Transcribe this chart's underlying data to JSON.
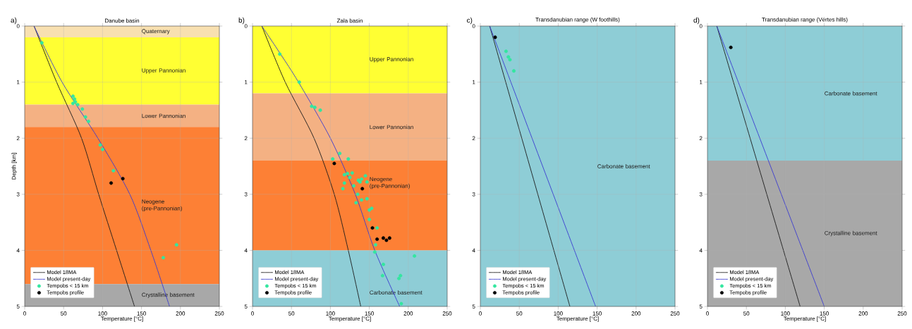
{
  "chart_data": [
    {
      "type": "line",
      "title": "Danube basin",
      "xlabel": "Temperature [°C]",
      "ylabel": "Depth [km]",
      "annotations": [
        "a)"
      ],
      "xlim": [
        0,
        250
      ],
      "ylim": [
        5,
        0
      ],
      "xticks": [
        0,
        50,
        100,
        150,
        200,
        250
      ],
      "yticks": [
        0,
        1,
        2,
        3,
        4,
        5
      ],
      "grid": true,
      "legend": "bottom left",
      "bands": [
        {
          "axis": "y",
          "from": 0,
          "to": 0.2,
          "label": "Quaternary",
          "color": "#f8e0b0"
        },
        {
          "axis": "y",
          "from": 0.2,
          "to": 1.4,
          "label": "Upper Pannonian",
          "color": "#ffff33"
        },
        {
          "axis": "y",
          "from": 1.4,
          "to": 1.8,
          "label": "Lower Pannonian",
          "color": "#f4b183"
        },
        {
          "axis": "y",
          "from": 1.8,
          "to": 4.6,
          "label": "Neogene (pre-Pannonian)",
          "color": "#fd8035"
        },
        {
          "axis": "y",
          "from": 4.6,
          "to": 5,
          "label": "Crystalline basement",
          "color": "#a8a8a8"
        }
      ],
      "series": [
        {
          "name": "Model 18MA",
          "color": "#1a1a1a",
          "x": [
            12,
            41,
            73,
            95,
            118,
            141
          ],
          "values": [
            0,
            1,
            2,
            3,
            4,
            5
          ]
        },
        {
          "name": "Model present-day",
          "color": "#3a3ad0",
          "x": [
            12,
            48,
            94,
            135,
            162,
            186
          ],
          "values": [
            0,
            1,
            2,
            3,
            4,
            5
          ]
        },
        {
          "name": "Tempobs < 15 km",
          "type": "scatter",
          "color": "#33e6a0",
          "marker": "circle",
          "x": [
            22,
            62,
            64,
            62,
            65,
            68,
            74,
            78,
            82,
            97,
            100,
            114,
            195,
            178
          ],
          "values": [
            0.3,
            1.25,
            1.3,
            1.38,
            1.35,
            1.4,
            1.48,
            1.62,
            1.7,
            2.12,
            2.2,
            2.58,
            3.9,
            4.13
          ]
        },
        {
          "name": "Tempobs profile",
          "type": "scatter",
          "color": "#000000",
          "marker": "circle",
          "x": [
            111,
            126
          ],
          "values": [
            2.8,
            2.72
          ]
        }
      ]
    },
    {
      "type": "line",
      "title": "Zala basin",
      "xlabel": "Temperature [°C]",
      "annotations": [
        "b)"
      ],
      "xlim": [
        0,
        250
      ],
      "ylim": [
        5,
        0
      ],
      "xticks": [
        0,
        50,
        100,
        150,
        200,
        250
      ],
      "yticks": [
        0,
        1,
        2,
        3,
        4,
        5
      ],
      "grid": true,
      "legend": "bottom left",
      "bands": [
        {
          "axis": "y",
          "from": 0,
          "to": 1.2,
          "label": "Upper Pannonian",
          "color": "#ffff33"
        },
        {
          "axis": "y",
          "from": 1.2,
          "to": 2.4,
          "label": "Lower Pannonian",
          "color": "#f4b183"
        },
        {
          "axis": "y",
          "from": 2.4,
          "to": 4,
          "label": "Neogene (pre-Pannonian)",
          "color": "#fd8035"
        },
        {
          "axis": "y",
          "from": 4,
          "to": 5,
          "label": "Carbonate basement",
          "color": "#8ecdd6"
        }
      ],
      "series": [
        {
          "name": "Model 18MA",
          "color": "#1a1a1a",
          "x": [
            12,
            42,
            79,
            105,
            123,
            139
          ],
          "values": [
            0,
            1,
            2,
            3,
            4,
            5
          ]
        },
        {
          "name": "Model present-day",
          "color": "#3a3ad0",
          "x": [
            12,
            36,
            59,
            100,
            132,
            157,
            189
          ],
          "values": [
            0,
            0.5,
            1,
            2,
            3,
            4,
            5
          ]
        },
        {
          "name": "Tempobs < 15 km",
          "type": "scatter",
          "color": "#33e6a0",
          "marker": "circle",
          "x": [
            35,
            60,
            76,
            80,
            87,
            112,
            103,
            123,
            118,
            122,
            125,
            128,
            140,
            145,
            147,
            116,
            118,
            130,
            136,
            138,
            135,
            140,
            133,
            147,
            150,
            153,
            150,
            160,
            158,
            157,
            208,
            168,
            167,
            190,
            188,
            191
          ],
          "values": [
            0.5,
            1.0,
            1.43,
            1.45,
            1.5,
            2.27,
            2.37,
            2.37,
            2.65,
            2.63,
            2.7,
            2.62,
            2.73,
            2.67,
            2.78,
            2.9,
            2.8,
            2.85,
            2.75,
            2.78,
            3.0,
            3.1,
            3.15,
            3.08,
            3.28,
            3.25,
            3.45,
            3.6,
            3.9,
            4.03,
            4.1,
            4.25,
            4.45,
            4.45,
            4.5,
            4.95
          ]
        },
        {
          "name": "Tempobs profile",
          "type": "scatter",
          "color": "#000000",
          "marker": "circle",
          "x": [
            105,
            141,
            154,
            160,
            168,
            172,
            176
          ],
          "values": [
            2.45,
            2.9,
            3.6,
            3.8,
            3.78,
            3.82,
            3.78
          ]
        }
      ]
    },
    {
      "type": "line",
      "title": "Transdanubian range (W foothills)",
      "xlabel": "Temperature [°C]",
      "annotations": [
        "c)"
      ],
      "xlim": [
        0,
        250
      ],
      "ylim": [
        5,
        0
      ],
      "xticks": [
        0,
        50,
        100,
        150,
        200,
        250
      ],
      "yticks": [
        0,
        1,
        2,
        3,
        4,
        5
      ],
      "grid": true,
      "legend": "bottom left",
      "bands": [
        {
          "axis": "y",
          "from": 0,
          "to": 5,
          "label": "Carbonate basement",
          "color": "#8ecdd6"
        }
      ],
      "series": [
        {
          "name": "Model 18MA",
          "color": "#1a1a1a",
          "x": [
            12,
            115
          ],
          "values": [
            0,
            5
          ]
        },
        {
          "name": "Model present-day",
          "color": "#3a3ad0",
          "x": [
            12,
            148
          ],
          "values": [
            0,
            5
          ]
        },
        {
          "name": "Tempobs < 15 km",
          "type": "scatter",
          "color": "#33e6a0",
          "marker": "circle",
          "x": [
            33,
            36,
            38,
            43
          ],
          "values": [
            0.45,
            0.55,
            0.6,
            0.8
          ]
        },
        {
          "name": "Tempobs profile",
          "type": "scatter",
          "color": "#000000",
          "marker": "circle",
          "x": [
            19
          ],
          "values": [
            0.2
          ]
        }
      ]
    },
    {
      "type": "line",
      "title": "Transdanubian range (Vértes hills)",
      "xlabel": "Temperature [°C]",
      "annotations": [
        "d)"
      ],
      "xlim": [
        0,
        250
      ],
      "ylim": [
        5,
        0
      ],
      "xticks": [
        0,
        50,
        100,
        150,
        200,
        250
      ],
      "yticks": [
        0,
        1,
        2,
        3,
        4,
        5
      ],
      "grid": true,
      "legend": "bottom left",
      "bands": [
        {
          "axis": "y",
          "from": 0,
          "to": 2.4,
          "label": "Carbonate basement",
          "color": "#8ecdd6"
        },
        {
          "axis": "y",
          "from": 2.4,
          "to": 5,
          "label": "Crystalline basement",
          "color": "#a8a8a8"
        }
      ],
      "series": [
        {
          "name": "Model 18MA",
          "color": "#1a1a1a",
          "x": [
            12,
            119
          ],
          "values": [
            0,
            5
          ]
        },
        {
          "name": "Model present-day",
          "color": "#3a3ad0",
          "x": [
            12,
            150
          ],
          "values": [
            0,
            5
          ]
        },
        {
          "name": "Tempobs < 15 km",
          "type": "scatter",
          "color": "#33e6a0",
          "marker": "circle"
        },
        {
          "name": "Tempobs profile",
          "type": "scatter",
          "color": "#000000",
          "marker": "circle",
          "x": [
            30
          ],
          "values": [
            0.38
          ]
        }
      ]
    }
  ]
}
